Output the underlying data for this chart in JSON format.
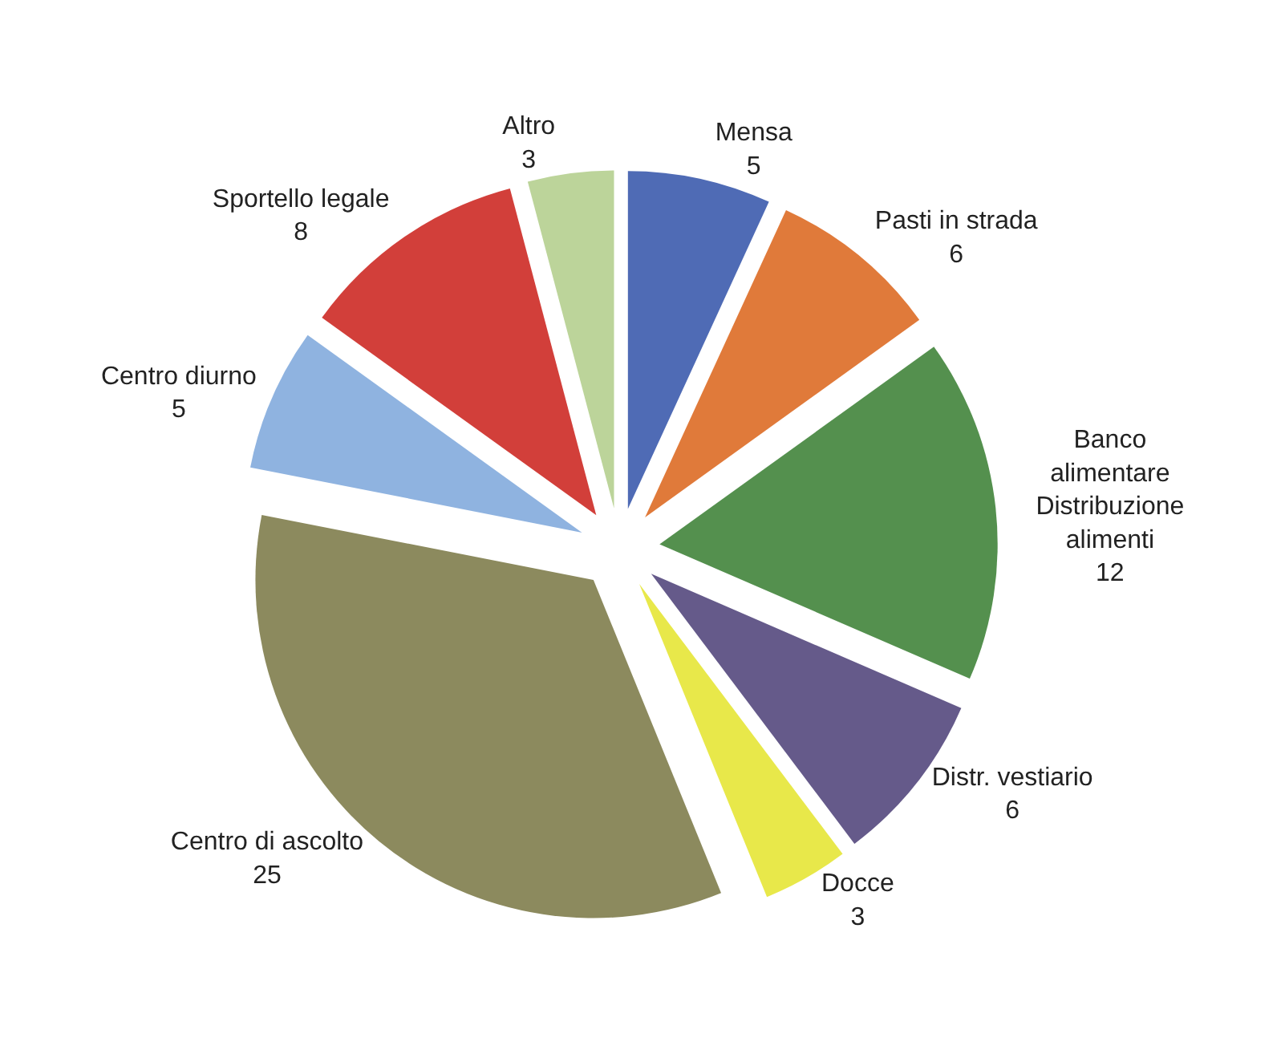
{
  "chart_data": {
    "type": "pie",
    "categories": [
      "Mensa",
      "Pasti in strada",
      "Banco\nalimentare\nDistribuzione\nalimenti",
      "Distr. vestiario",
      "Docce",
      "Centro di ascolto",
      "Centro diurno",
      "Sportello legale",
      "Altro"
    ],
    "values": [
      5,
      6,
      12,
      6,
      3,
      25,
      5,
      8,
      3
    ],
    "colors": [
      "#4f6bb5",
      "#e07a3a",
      "#54904e",
      "#655a8a",
      "#e8e84a",
      "#8c8a5e",
      "#8fb3e0",
      "#d23f3a",
      "#bcd49a"
    ],
    "data_labels": true,
    "legend": false
  }
}
